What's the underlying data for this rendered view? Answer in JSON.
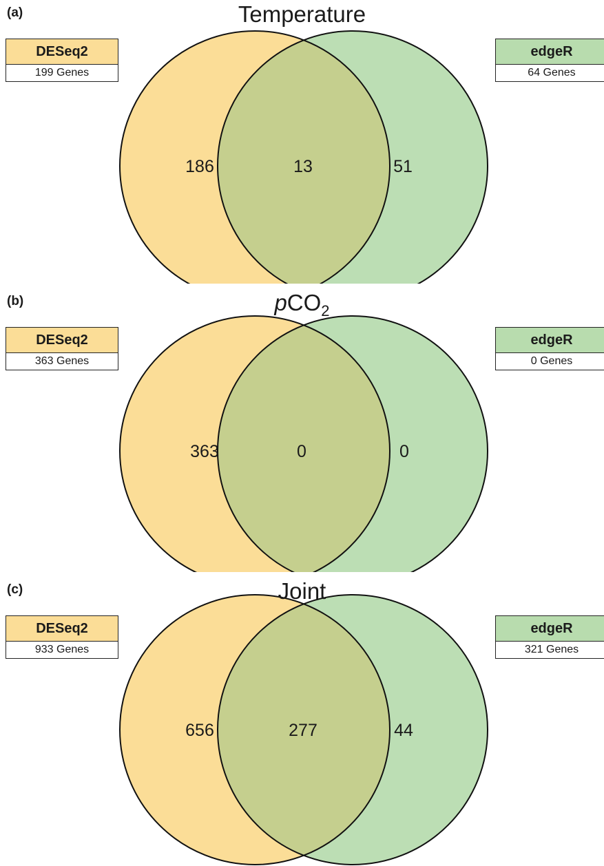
{
  "colors": {
    "deseq_fill": "#fbdd97",
    "edger_fill": "#bcdeb4",
    "overlap_fill": "#c5cf8e",
    "stroke": "#111111"
  },
  "panels": [
    {
      "letter": "(a)",
      "title": "Temperature",
      "left": {
        "name": "DESeq2",
        "genes": "199 Genes",
        "only": "186"
      },
      "right": {
        "name": "edgeR",
        "genes": "64 Genes",
        "only": "51"
      },
      "overlap": "13"
    },
    {
      "letter": "(b)",
      "title_prefix": "p",
      "title_main": "CO",
      "title_sub": "2",
      "left": {
        "name": "DESeq2",
        "genes": "363 Genes",
        "only": "363"
      },
      "right": {
        "name": "edgeR",
        "genes": "0 Genes",
        "only": "0"
      },
      "overlap": "0"
    },
    {
      "letter": "(c)",
      "title": "Joint",
      "left": {
        "name": "DESeq2",
        "genes": "933 Genes",
        "only": "656"
      },
      "right": {
        "name": "edgeR",
        "genes": "321 Genes",
        "only": "44"
      },
      "overlap": "277"
    }
  ]
}
